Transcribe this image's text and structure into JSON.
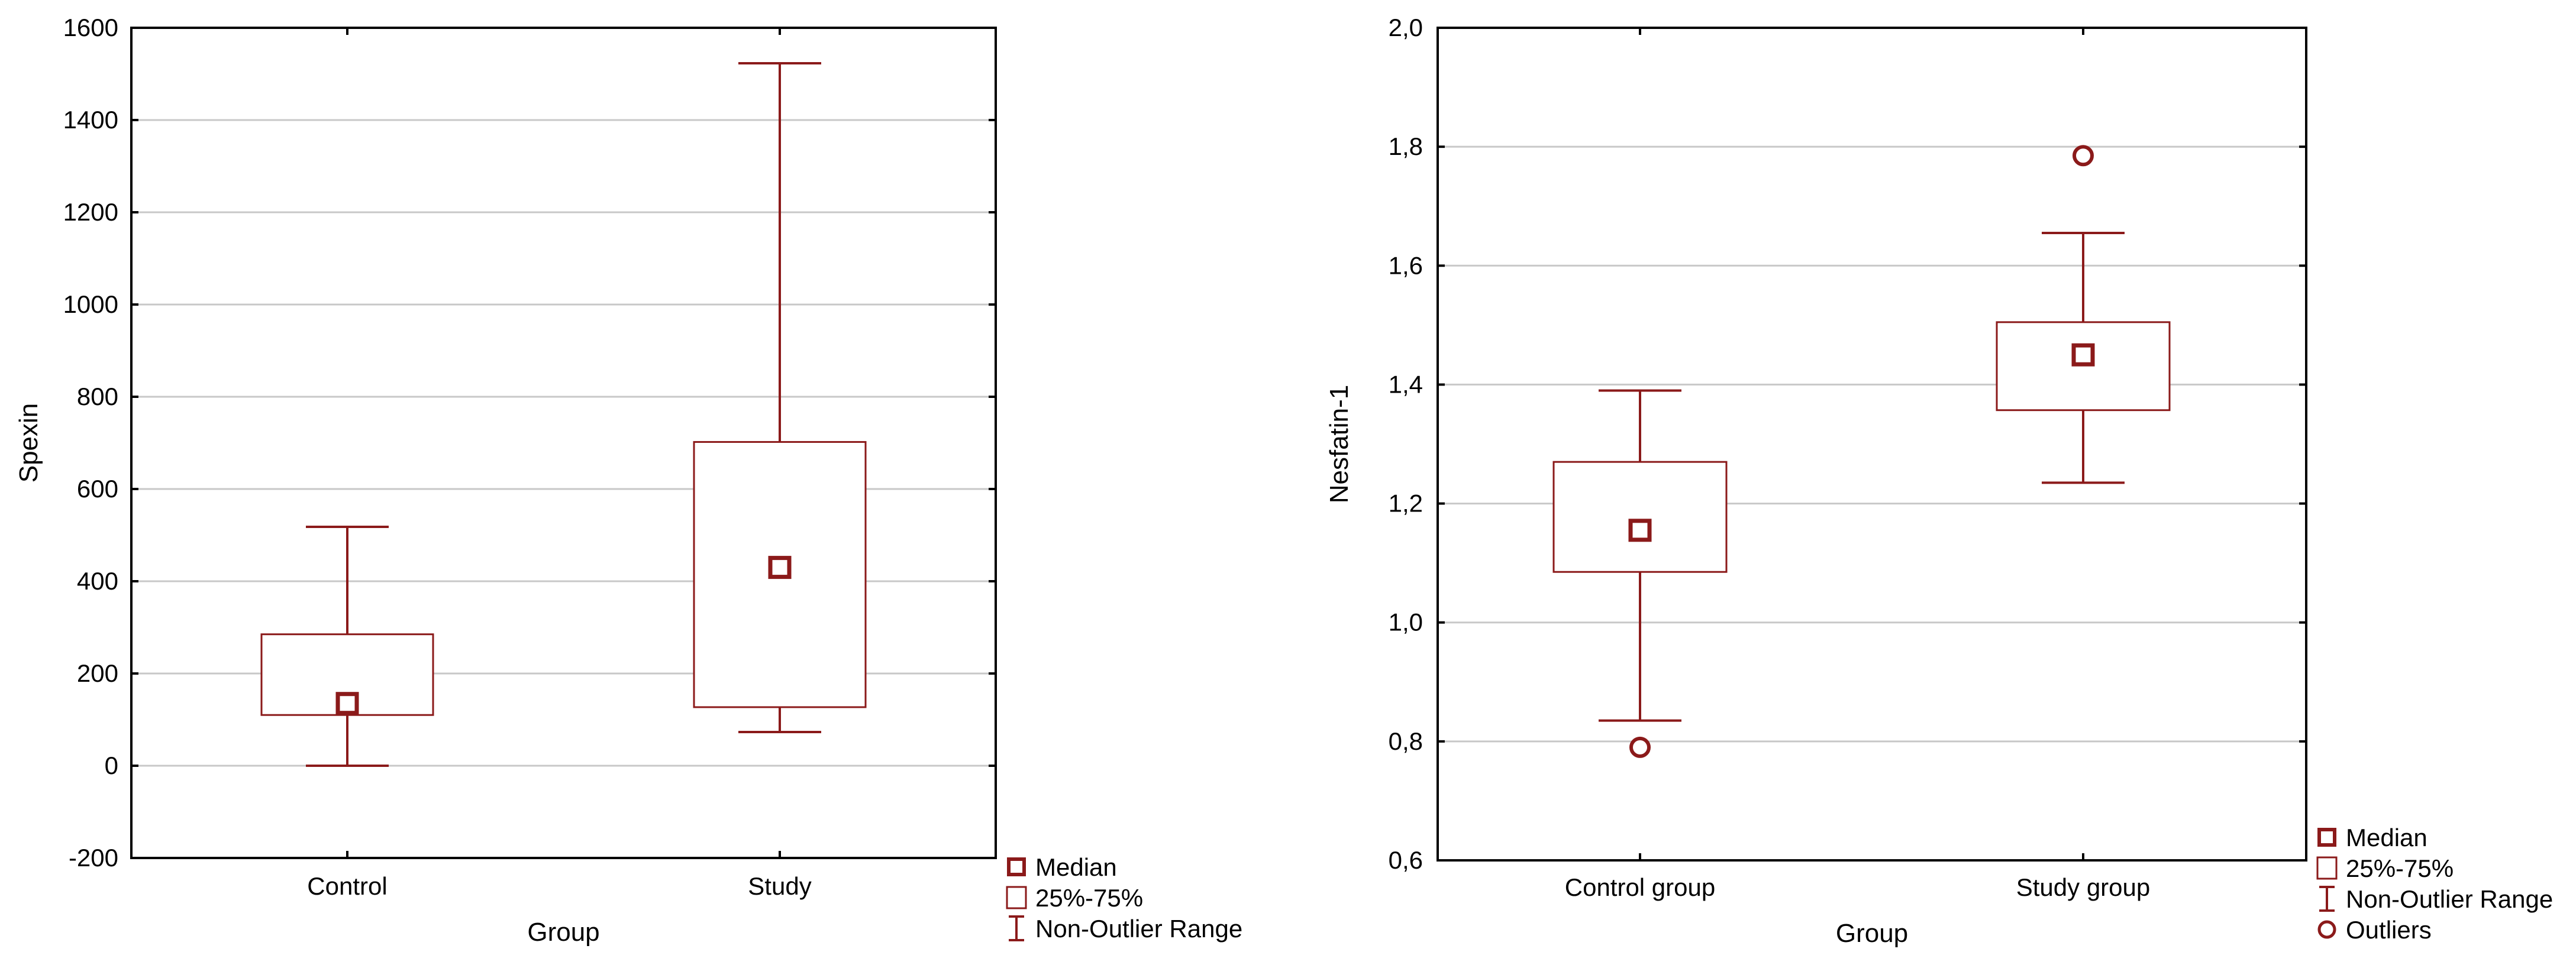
{
  "chart_data": [
    {
      "type": "boxplot",
      "xlabel": "Group",
      "ylabel": "Spexin",
      "ylim": [
        -200,
        1600
      ],
      "yticks": [
        -200,
        0,
        200,
        400,
        600,
        800,
        1000,
        1200,
        1400,
        1600
      ],
      "ytick_labels": [
        "-200",
        "0",
        "200",
        "400",
        "600",
        "800",
        "1000",
        "1200",
        "1400",
        "1600"
      ],
      "grid": true,
      "categories": [
        "Control",
        "Study"
      ],
      "boxes": [
        {
          "median": 135,
          "q1": 110,
          "q3": 285,
          "whisker_low": 0,
          "whisker_high": 518,
          "outliers": []
        },
        {
          "median": 430,
          "q1": 127,
          "q3": 702,
          "whisker_low": 73,
          "whisker_high": 1523,
          "outliers": []
        }
      ],
      "legend": {
        "placement": "outside-bottom-right",
        "items": [
          {
            "symbol": "square",
            "label": "Median"
          },
          {
            "symbol": "box",
            "label": "25%-75%"
          },
          {
            "symbol": "whisker",
            "label": "Non-Outlier Range"
          }
        ]
      }
    },
    {
      "type": "boxplot",
      "xlabel": "Group",
      "ylabel": "Nesfatin-1",
      "ylim": [
        0.6,
        2.0
      ],
      "yticks": [
        0.6,
        0.8,
        1.0,
        1.2,
        1.4,
        1.6,
        1.8,
        2.0
      ],
      "ytick_labels": [
        "0,6",
        "0,8",
        "1,0",
        "1,2",
        "1,4",
        "1,6",
        "1,8",
        "2,0"
      ],
      "grid": true,
      "categories": [
        "Control group",
        "Study group"
      ],
      "boxes": [
        {
          "median": 1.155,
          "q1": 1.085,
          "q3": 1.27,
          "whisker_low": 0.835,
          "whisker_high": 1.39,
          "outliers": [
            0.79
          ]
        },
        {
          "median": 1.45,
          "q1": 1.357,
          "q3": 1.505,
          "whisker_low": 1.235,
          "whisker_high": 1.655,
          "outliers": [
            1.785
          ]
        }
      ],
      "legend": {
        "placement": "outside-bottom-right",
        "items": [
          {
            "symbol": "square",
            "label": "Median"
          },
          {
            "symbol": "box",
            "label": "25%-75%"
          },
          {
            "symbol": "whisker",
            "label": "Non-Outlier Range"
          },
          {
            "symbol": "circle",
            "label": "Outliers"
          }
        ]
      }
    }
  ],
  "colors": {
    "series": "#8b1a1a",
    "grid": "#c8c8c8",
    "axis": "#000000"
  }
}
